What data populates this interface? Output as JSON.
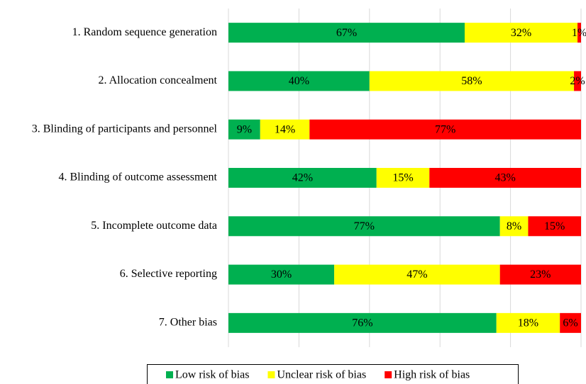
{
  "chart_data": {
    "type": "stacked-bar-horizontal",
    "categories": [
      "1. Random sequence generation",
      "2. Allocation concealment",
      "3. Blinding of participants and personnel",
      "4. Blinding of outcome assessment",
      "5. Incomplete outcome data",
      "6. Selective reporting",
      "7. Other bias"
    ],
    "series": [
      {
        "name": "Low risk of bias",
        "color": "#00b050",
        "values": [
          67,
          40,
          9,
          42,
          77,
          30,
          76
        ],
        "value_labels": [
          "67%",
          "40%",
          "9%",
          "42%",
          "77%",
          "30%",
          "76%"
        ]
      },
      {
        "name": "Unclear risk of bias",
        "color": "#ffff00",
        "values": [
          32,
          58,
          14,
          15,
          8,
          47,
          18
        ],
        "value_labels": [
          "32%",
          "58%",
          "14%",
          "15%",
          "8%",
          "47%",
          "18%"
        ]
      },
      {
        "name": "High risk of bias",
        "color": "#ff0000",
        "values": [
          1,
          2,
          77,
          43,
          15,
          23,
          6
        ],
        "value_labels": [
          "1%",
          "2%",
          "77%",
          "43%",
          "15%",
          "23%",
          "6%"
        ]
      }
    ],
    "xlim": [
      0,
      100
    ],
    "xticks": [
      0,
      20,
      40,
      60,
      80,
      100
    ],
    "grid": true,
    "legend": "bottom"
  }
}
